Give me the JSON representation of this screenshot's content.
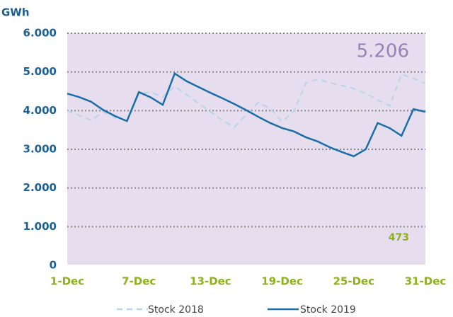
{
  "chart_data": {
    "type": "line",
    "ylabel": "GWh",
    "categories": [
      "1-Dec",
      null,
      null,
      null,
      null,
      null,
      "7-Dec",
      null,
      null,
      null,
      null,
      null,
      "13-Dec",
      null,
      null,
      null,
      null,
      null,
      "19-Dec",
      null,
      null,
      null,
      null,
      null,
      "25-Dec",
      null,
      null,
      null,
      null,
      null,
      "31-Dec"
    ],
    "series": [
      {
        "name": "Stock 2018",
        "color": "#b9d3ea",
        "dashed": true,
        "values": [
          3990,
          3880,
          3750,
          3970,
          3820,
          3750,
          4430,
          4480,
          4350,
          4630,
          4410,
          4190,
          3970,
          3750,
          3570,
          3900,
          4210,
          4060,
          3710,
          3990,
          4720,
          4810,
          4720,
          4650,
          4570,
          4440,
          4280,
          4120,
          4940,
          4830,
          4700
        ]
      },
      {
        "name": "Stock 2019",
        "color": "#1a6ea8",
        "dashed": false,
        "values": [
          4440,
          4350,
          4230,
          4020,
          3860,
          3730,
          4480,
          4340,
          4150,
          4960,
          4760,
          4610,
          4460,
          4320,
          4170,
          4010,
          3840,
          3680,
          3550,
          3460,
          3310,
          3200,
          3050,
          2930,
          2820,
          3000,
          3680,
          3550,
          3350,
          4040,
          3970
        ]
      }
    ],
    "ylim": [
      0,
      6000
    ],
    "yticks": [
      {
        "value": 0,
        "label": "0"
      },
      {
        "value": 1000,
        "label": "1.000"
      },
      {
        "value": 2000,
        "label": "2.000"
      },
      {
        "value": 3000,
        "label": "3.000"
      },
      {
        "value": 4000,
        "label": "4.000"
      },
      {
        "value": 5000,
        "label": "5.000"
      },
      {
        "value": 6000,
        "label": "6.000"
      }
    ],
    "grid": true,
    "annotations": [
      "5.206",
      "473"
    ],
    "legend": "bottom"
  }
}
